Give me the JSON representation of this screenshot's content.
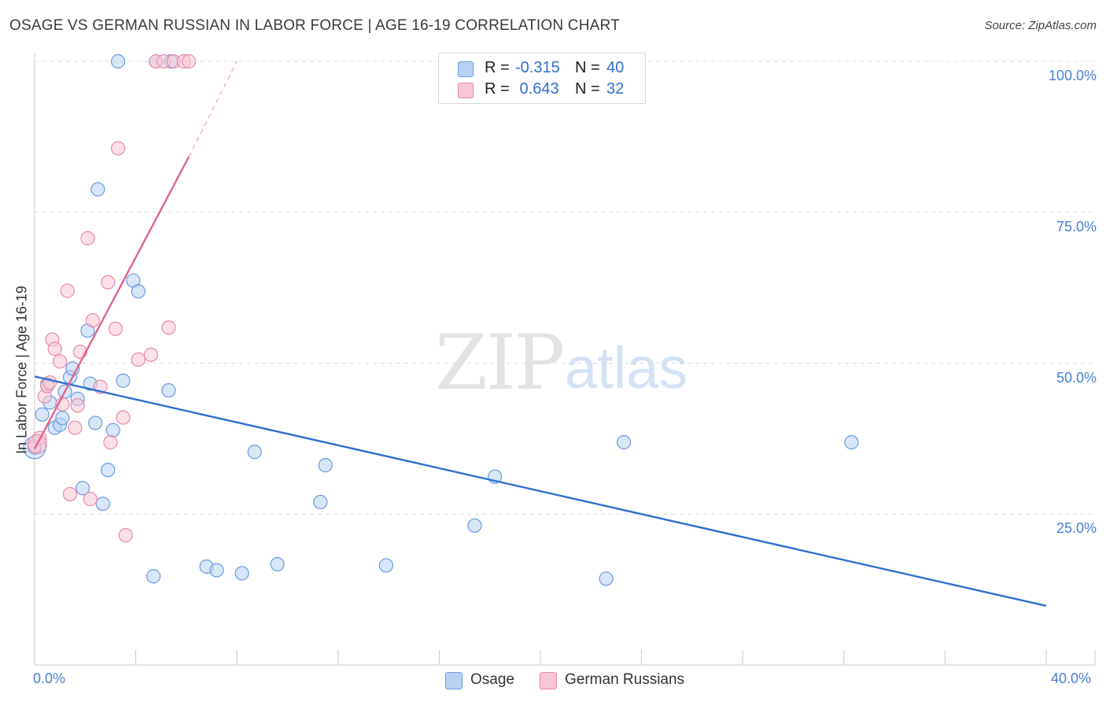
{
  "title": "OSAGE VS GERMAN RUSSIAN IN LABOR FORCE | AGE 16-19 CORRELATION CHART",
  "source": "Source: ZipAtlas.com",
  "watermark": {
    "zip": "ZIP",
    "atlas": "atlas"
  },
  "legend_top": {
    "rows": [
      {
        "r_label": "R =",
        "r_value": "-0.315",
        "n_label": "N =",
        "n_value": "40",
        "color": "#b8d1f3"
      },
      {
        "r_label": "R =",
        "r_value": " 0.643",
        "n_label": "N =",
        "n_value": "32",
        "color": "#f9c6d5"
      }
    ]
  },
  "legend_bottom": [
    {
      "label": "Osage",
      "color": "#b8d1f3"
    },
    {
      "label": "German Russians",
      "color": "#f9c6d5"
    }
  ],
  "colors": {
    "osage_fill": "#b8d1f3",
    "osage_stroke": "#6b9ae0",
    "osage_line": "#2f6fd0",
    "gr_fill": "#f9c6d5",
    "gr_stroke": "#e78aa8",
    "gr_line": "#e0648d",
    "tick_text": "#4a7fd0",
    "grid": "#dcdcdc"
  },
  "chart_data": {
    "type": "scatter",
    "title": "OSAGE VS GERMAN RUSSIAN IN LABOR FORCE | AGE 16-19 CORRELATION CHART",
    "xlabel": "",
    "ylabel": "In Labor Force | Age 16-19",
    "xlim": [
      0,
      40
    ],
    "ylim": [
      0,
      100
    ],
    "x_tick_labels": [
      "0.0%",
      "40.0%"
    ],
    "y_ticks": [
      25,
      50,
      75,
      100
    ],
    "y_tick_labels": [
      "25.0%",
      "50.0%",
      "75.0%",
      "100.0%"
    ],
    "grid": true,
    "series": [
      {
        "name": "Osage",
        "r": -0.315,
        "n": 40,
        "trend": {
          "x": [
            0,
            40
          ],
          "y": [
            47.8,
            9.8
          ]
        },
        "points": [
          [
            0.0,
            36.0
          ],
          [
            0.3,
            41.5
          ],
          [
            0.5,
            46.5
          ],
          [
            0.6,
            43.5
          ],
          [
            0.8,
            39.3
          ],
          [
            1.0,
            39.8
          ],
          [
            1.1,
            40.9
          ],
          [
            1.2,
            45.3
          ],
          [
            1.4,
            47.7
          ],
          [
            1.5,
            49.1
          ],
          [
            1.7,
            44.1
          ],
          [
            1.9,
            29.3
          ],
          [
            2.1,
            55.4
          ],
          [
            2.2,
            46.6
          ],
          [
            2.4,
            40.1
          ],
          [
            2.5,
            78.8
          ],
          [
            2.7,
            26.7
          ],
          [
            2.9,
            32.3
          ],
          [
            3.1,
            38.9
          ],
          [
            3.3,
            100.0
          ],
          [
            3.5,
            47.1
          ],
          [
            3.9,
            63.7
          ],
          [
            4.1,
            61.9
          ],
          [
            4.7,
            14.7
          ],
          [
            4.8,
            100.0
          ],
          [
            5.3,
            45.5
          ],
          [
            5.4,
            100.0
          ],
          [
            6.8,
            16.3
          ],
          [
            7.2,
            15.7
          ],
          [
            8.2,
            15.2
          ],
          [
            8.7,
            35.3
          ],
          [
            9.6,
            16.7
          ],
          [
            11.5,
            33.1
          ],
          [
            11.3,
            27.0
          ],
          [
            13.9,
            16.5
          ],
          [
            17.4,
            23.1
          ],
          [
            18.2,
            31.2
          ],
          [
            22.6,
            14.3
          ],
          [
            23.3,
            36.9
          ],
          [
            32.3,
            36.9
          ]
        ]
      },
      {
        "name": "German Russians",
        "r": 0.643,
        "n": 32,
        "trend": {
          "x": [
            0,
            6.1
          ],
          "y": [
            35.8,
            84.2
          ]
        },
        "trend_extension": {
          "x": [
            6.1,
            8.0
          ],
          "y": [
            84.2,
            100.0
          ]
        },
        "points": [
          [
            0.0,
            36.3
          ],
          [
            0.2,
            37.6
          ],
          [
            0.4,
            44.5
          ],
          [
            0.5,
            46.2
          ],
          [
            0.6,
            46.8
          ],
          [
            0.7,
            53.9
          ],
          [
            0.8,
            52.4
          ],
          [
            1.0,
            50.3
          ],
          [
            1.1,
            43.2
          ],
          [
            1.3,
            62.0
          ],
          [
            1.4,
            28.3
          ],
          [
            1.6,
            39.3
          ],
          [
            1.7,
            43.0
          ],
          [
            1.8,
            51.9
          ],
          [
            2.1,
            70.7
          ],
          [
            2.2,
            27.5
          ],
          [
            2.3,
            57.1
          ],
          [
            2.6,
            46.1
          ],
          [
            2.9,
            63.4
          ],
          [
            3.0,
            36.9
          ],
          [
            3.2,
            55.7
          ],
          [
            3.3,
            85.6
          ],
          [
            3.5,
            41.0
          ],
          [
            3.6,
            21.5
          ],
          [
            4.1,
            50.6
          ],
          [
            4.6,
            51.4
          ],
          [
            4.8,
            100.0
          ],
          [
            5.1,
            100.0
          ],
          [
            5.3,
            55.9
          ],
          [
            5.5,
            100.0
          ],
          [
            5.9,
            100.0
          ],
          [
            6.1,
            100.0
          ]
        ]
      }
    ]
  }
}
